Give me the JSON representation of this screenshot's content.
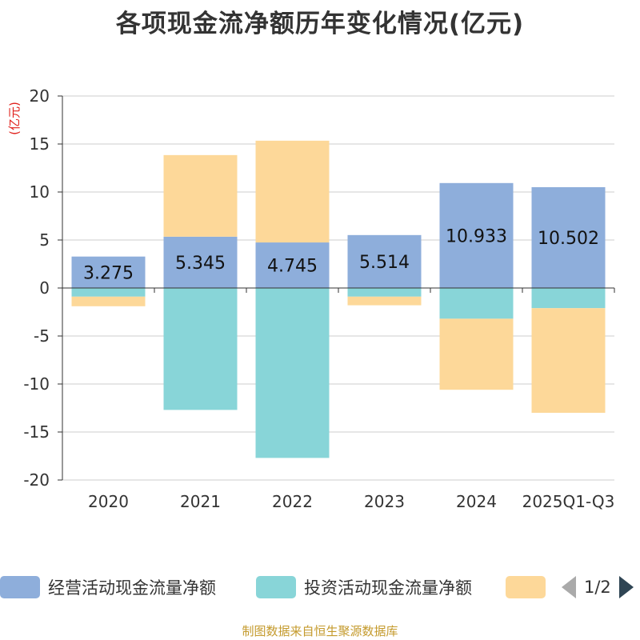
{
  "chart_data": {
    "type": "bar",
    "stacked": true,
    "title": "各项现金流净额历年变化情况(亿元)",
    "ylabel": "(亿元)",
    "xlabel": "",
    "ylim": [
      -20,
      20
    ],
    "yticks": [
      20,
      15,
      10,
      5,
      0,
      -5,
      -10,
      -15,
      -20
    ],
    "categories": [
      "2020",
      "2021",
      "2022",
      "2023",
      "2024",
      "2025Q1-Q3"
    ],
    "series": [
      {
        "name": "经营活动现金流量净额",
        "color": "#8eaedb",
        "values": [
          3.275,
          5.345,
          4.745,
          5.514,
          10.933,
          10.502
        ],
        "labels": [
          "3.275",
          "5.345",
          "4.745",
          "5.514",
          "10.933",
          "10.502"
        ]
      },
      {
        "name": "投资活动现金流量净额",
        "color": "#88d5d8",
        "values": [
          -0.9,
          -12.7,
          -17.7,
          -0.9,
          -3.2,
          -2.1
        ]
      },
      {
        "name": "",
        "color": "#fdd899",
        "values": [
          -1.0,
          8.5,
          10.6,
          -0.9,
          -7.4,
          -10.9
        ]
      }
    ],
    "legend": {
      "page": "1/2"
    },
    "source": "制图数据来自恒生聚源数据库"
  }
}
